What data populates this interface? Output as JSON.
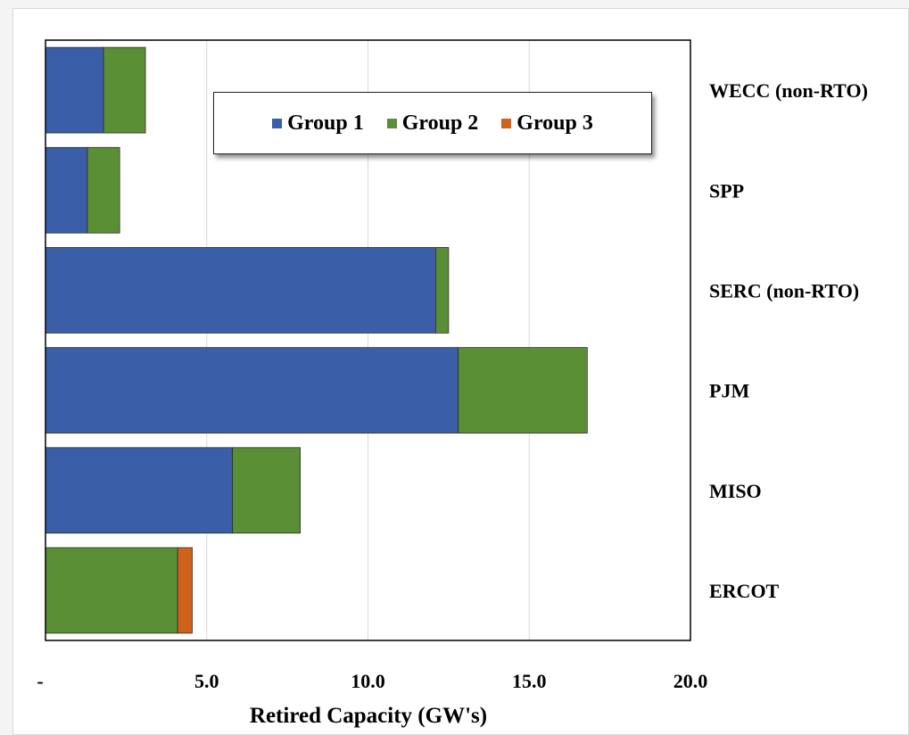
{
  "chart_data": {
    "type": "bar",
    "orientation": "horizontal",
    "stacked": true,
    "title": "",
    "xlabel": "Retired Capacity (GW's)",
    "ylabel": "",
    "xlim": [
      0,
      20
    ],
    "x_ticks": [
      {
        "value": 0,
        "label": "-"
      },
      {
        "value": 5,
        "label": "5.0"
      },
      {
        "value": 10,
        "label": "10.0"
      },
      {
        "value": 15,
        "label": "15.0"
      },
      {
        "value": 20,
        "label": "20.0"
      }
    ],
    "categories": [
      "WECC (non-RTO)",
      "SPP",
      "SERC (non-RTO)",
      "PJM",
      "MISO",
      "ERCOT"
    ],
    "series": [
      {
        "name": "Group 1",
        "color": "#3a5fa8",
        "values": [
          1.8,
          1.3,
          12.1,
          12.8,
          5.8,
          0
        ]
      },
      {
        "name": "Group 2",
        "color": "#5b8f35",
        "values": [
          1.3,
          1.0,
          0.4,
          4.0,
          2.1,
          4.1
        ]
      },
      {
        "name": "Group 3",
        "color": "#d0631c",
        "values": [
          0,
          0,
          0,
          0,
          0,
          0.45
        ]
      }
    ],
    "grid": "vertical",
    "legend_position": "top"
  }
}
